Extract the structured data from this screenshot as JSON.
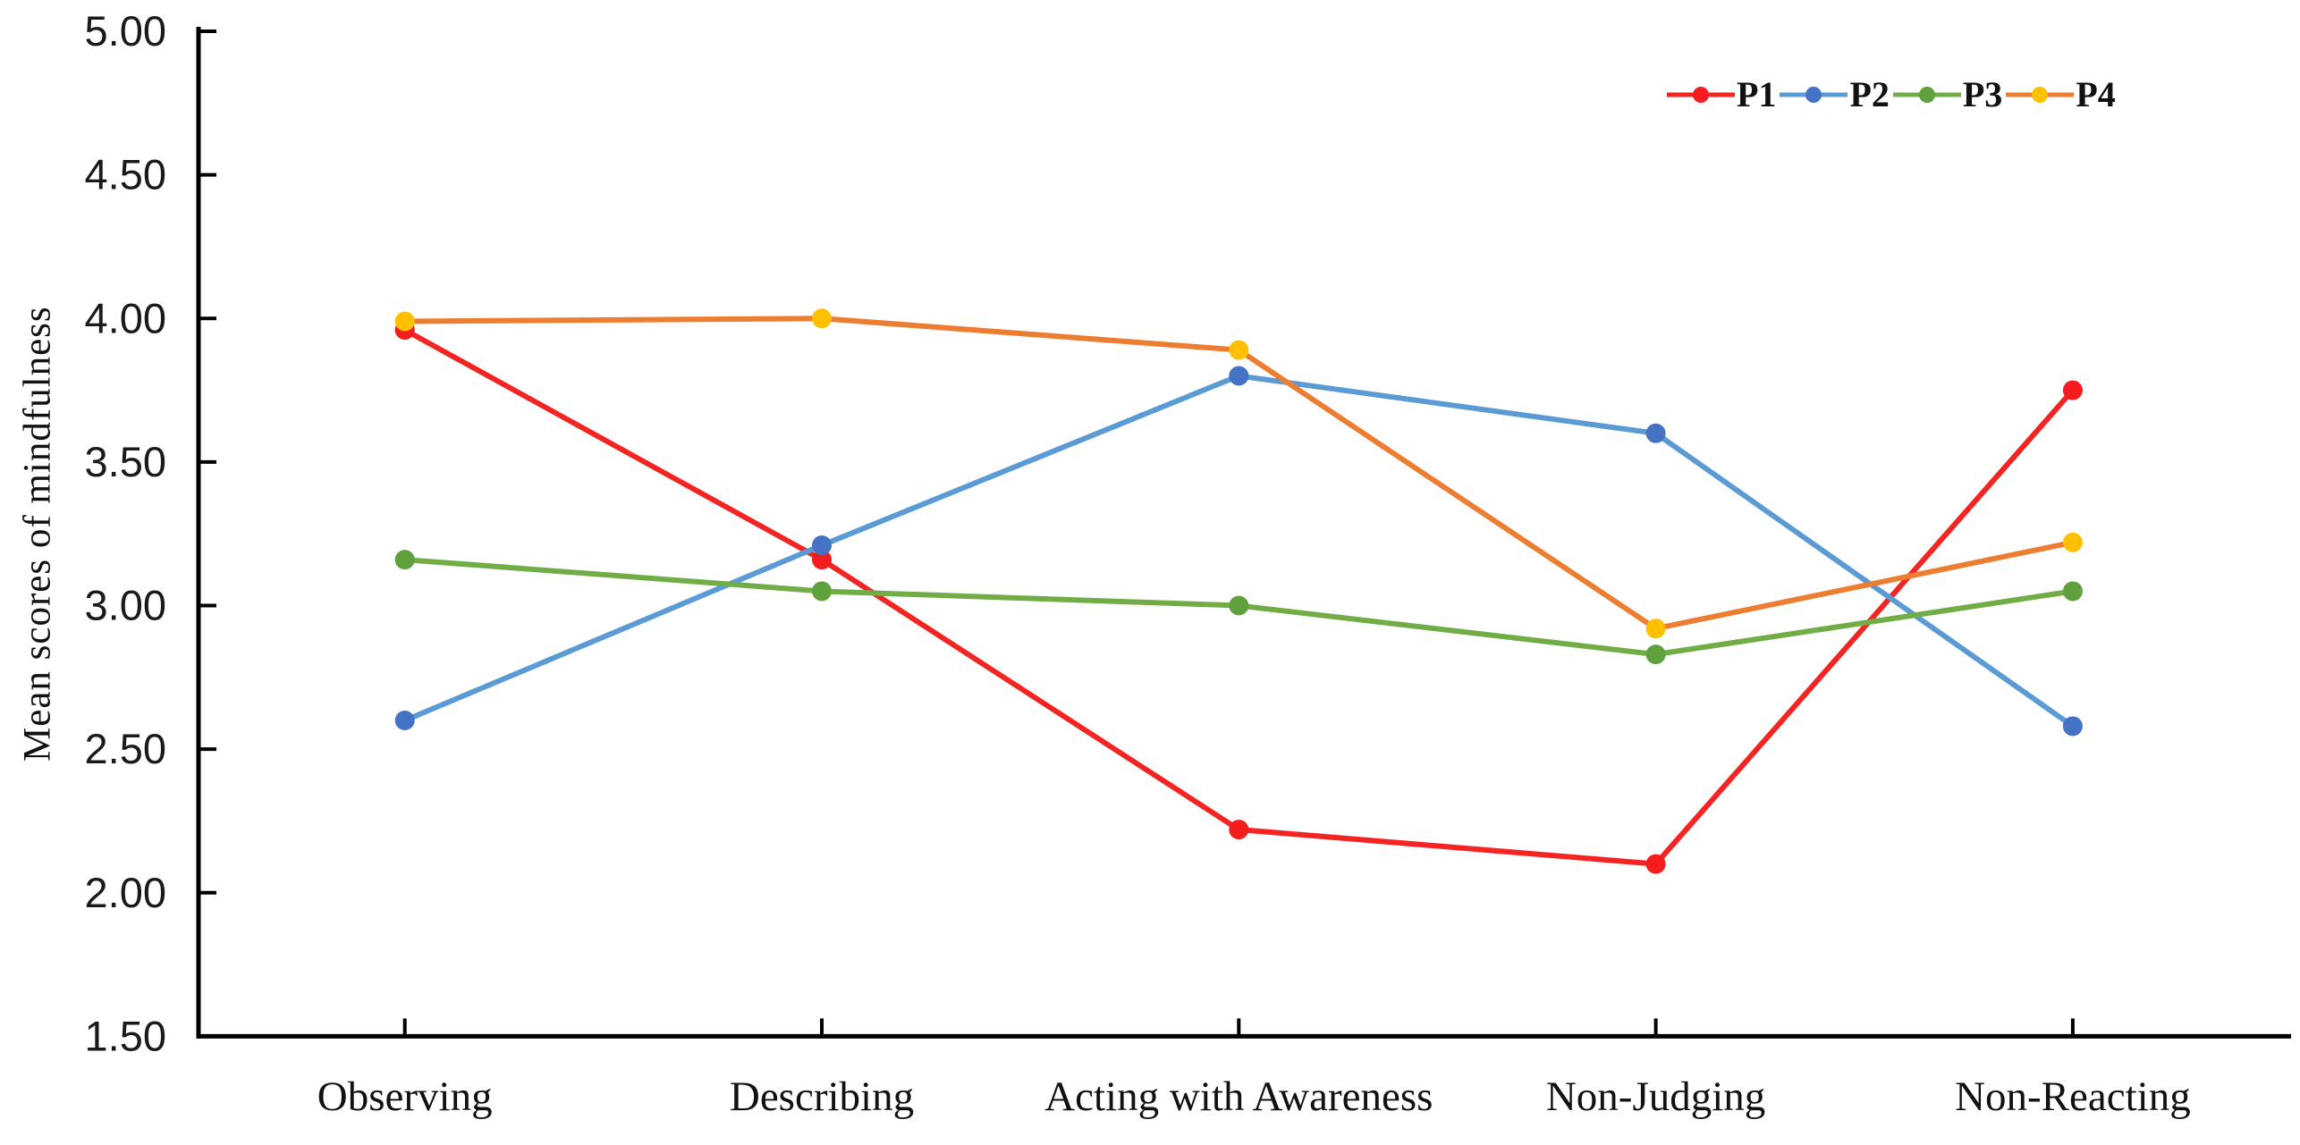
{
  "figure_title": "",
  "chart_data": {
    "type": "line",
    "title": "",
    "xlabel": "",
    "ylabel": "Mean scores of mindfulness",
    "categories": [
      "Observing",
      "Describing",
      "Acting with Awareness",
      "Non-Judging",
      "Non-Reacting"
    ],
    "series": [
      {
        "name": "P1",
        "color": "#f42422",
        "marker_color": "#f41c1c",
        "values": [
          3.96,
          3.16,
          2.22,
          2.1,
          3.75
        ]
      },
      {
        "name": "P2",
        "color": "#5b9bd5",
        "marker_color": "#4472c4",
        "values": [
          2.6,
          3.21,
          3.8,
          3.6,
          2.58
        ]
      },
      {
        "name": "P3",
        "color": "#70ad47",
        "marker_color": "#5fa13c",
        "values": [
          3.16,
          3.05,
          3.0,
          2.83,
          3.05
        ]
      },
      {
        "name": "P4",
        "color": "#ed7d31",
        "marker_color": "#ffc000",
        "values": [
          3.99,
          4.0,
          3.89,
          2.92,
          3.22
        ]
      }
    ],
    "ylim": [
      1.5,
      5.0
    ],
    "ytick_step": 0.5,
    "ytick_labels": [
      "5.00",
      "4.50",
      "4.00",
      "3.50",
      "3.00",
      "2.50",
      "2.00",
      "1.50"
    ],
    "grid": false,
    "legend_position": "top-right",
    "axis_color": "#000000",
    "tick_label_color": "#1a1a1a"
  }
}
